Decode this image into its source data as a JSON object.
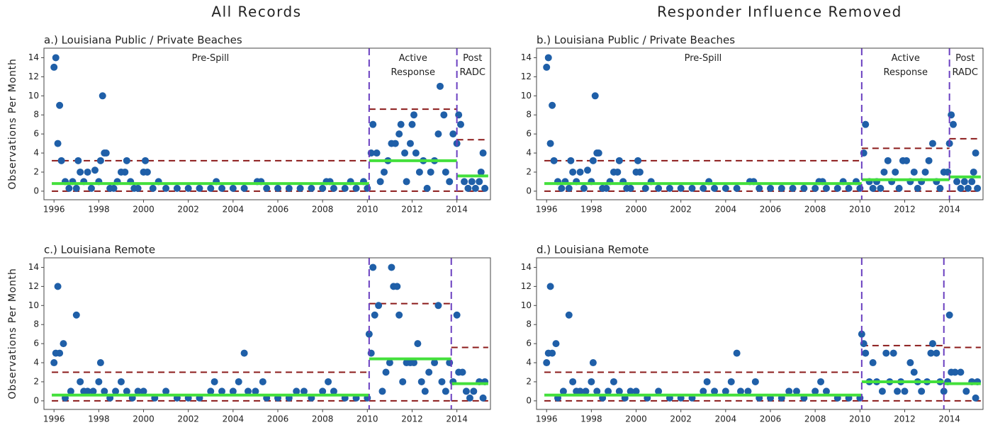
{
  "column_titles": [
    "All Records",
    "Responder Influence Removed"
  ],
  "chart_data": [
    {
      "type": "scatter",
      "title": "a.) Louisiana Public / Private Beaches",
      "y_label": "Observations Per Month",
      "color": "#1f5fa8",
      "xlim": [
        1995.55,
        2015.5
      ],
      "xticks": [
        1996,
        1998,
        2000,
        2002,
        2004,
        2006,
        2008,
        2010,
        2012,
        2014
      ],
      "ylim": [
        -0.9,
        15
      ],
      "yticks": [
        0,
        2,
        4,
        6,
        8,
        10,
        12,
        14
      ],
      "x": [
        1996.0,
        1996.08,
        1996.17,
        1996.25,
        1996.33,
        1996.5,
        1996.67,
        1996.83,
        1997.0,
        1997.08,
        1997.17,
        1997.33,
        1997.5,
        1997.67,
        1997.83,
        1998.0,
        1998.08,
        1998.17,
        1998.25,
        1998.33,
        1998.5,
        1998.67,
        1998.83,
        1999.0,
        1999.17,
        1999.25,
        1999.42,
        1999.58,
        1999.75,
        2000.0,
        2000.08,
        2000.17,
        2000.42,
        2000.67,
        2001.0,
        2001.5,
        2002.0,
        2002.5,
        2003.0,
        2003.25,
        2003.5,
        2004.0,
        2004.5,
        2005.08,
        2005.25,
        2005.5,
        2006.0,
        2006.5,
        2007.0,
        2007.5,
        2008.0,
        2008.17,
        2008.33,
        2008.5,
        2009.0,
        2009.25,
        2009.5,
        2009.83,
        2010.0,
        2010.17,
        2010.25,
        2010.42,
        2010.58,
        2010.75,
        2010.92,
        2011.08,
        2011.25,
        2011.42,
        2011.5,
        2011.67,
        2011.75,
        2011.92,
        2012.0,
        2012.08,
        2012.17,
        2012.33,
        2012.5,
        2012.67,
        2012.83,
        2013.0,
        2013.17,
        2013.25,
        2013.42,
        2013.5,
        2013.67,
        2013.83,
        2014.0,
        2014.08,
        2014.17,
        2014.33,
        2014.5,
        2014.67,
        2014.83,
        2015.0,
        2015.08,
        2015.17,
        2015.25
      ],
      "values": [
        13,
        14,
        5,
        9,
        3.2,
        1,
        0.3,
        1,
        0.3,
        3.2,
        2,
        1,
        2,
        0.3,
        2.2,
        1,
        3.2,
        10,
        4,
        4,
        0.3,
        0.3,
        1,
        2,
        2,
        3.2,
        1,
        0.3,
        0.3,
        2,
        3.2,
        2,
        0.3,
        1,
        0.3,
        0.3,
        0.3,
        0.3,
        0.3,
        1,
        0.3,
        0.3,
        0.3,
        1,
        1,
        0.3,
        0.3,
        0.3,
        0.3,
        0.3,
        0.3,
        1,
        1,
        0.3,
        0.3,
        1,
        0.3,
        1,
        0.3,
        4,
        7,
        4,
        1,
        2,
        3.2,
        5,
        5,
        6,
        7,
        4,
        1,
        5,
        7,
        8,
        4,
        2,
        3.2,
        0.3,
        2,
        3.2,
        6,
        11,
        8,
        2,
        1,
        6,
        5,
        8,
        7,
        1,
        0.3,
        1,
        0.3,
        1,
        2,
        4,
        0.3
      ],
      "phases": [
        {
          "label": "Pre-Spill",
          "start": 1995.9,
          "end": 2010.08,
          "mean": 0.8,
          "ucl": 3.2,
          "lcl": 0
        },
        {
          "label": "Active Response",
          "start": 2010.08,
          "end": 2014.0,
          "mean": 3.2,
          "ucl": 8.6,
          "lcl": 0
        },
        {
          "label": "Post RADC",
          "start": 2014.0,
          "end": 2015.4,
          "mean": 1.6,
          "ucl": 5.4,
          "lcl": 0
        }
      ]
    },
    {
      "type": "scatter",
      "title": "b.) Louisiana Public / Private Beaches",
      "color": "#1f5fa8",
      "xlim": [
        1995.55,
        2015.5
      ],
      "xticks": [
        1996,
        1998,
        2000,
        2002,
        2004,
        2006,
        2008,
        2010,
        2012,
        2014
      ],
      "ylim": [
        -0.9,
        15
      ],
      "yticks": [
        0,
        2,
        4,
        6,
        8,
        10,
        12,
        14
      ],
      "x": [
        1996.0,
        1996.08,
        1996.17,
        1996.25,
        1996.33,
        1996.5,
        1996.67,
        1996.83,
        1997.0,
        1997.08,
        1997.17,
        1997.33,
        1997.5,
        1997.67,
        1997.83,
        1998.0,
        1998.08,
        1998.17,
        1998.25,
        1998.33,
        1998.5,
        1998.67,
        1998.83,
        1999.0,
        1999.17,
        1999.25,
        1999.42,
        1999.58,
        1999.75,
        2000.0,
        2000.08,
        2000.17,
        2000.42,
        2000.67,
        2001.0,
        2001.5,
        2002.0,
        2002.5,
        2003.0,
        2003.25,
        2003.5,
        2004.0,
        2004.5,
        2005.08,
        2005.25,
        2005.5,
        2006.0,
        2006.5,
        2007.0,
        2007.5,
        2008.0,
        2008.17,
        2008.33,
        2008.5,
        2009.0,
        2009.25,
        2009.5,
        2009.83,
        2010.0,
        2010.17,
        2010.25,
        2010.42,
        2010.58,
        2010.75,
        2010.92,
        2011.08,
        2011.25,
        2011.42,
        2011.58,
        2011.75,
        2011.92,
        2012.08,
        2012.25,
        2012.42,
        2012.58,
        2012.75,
        2012.92,
        2013.08,
        2013.25,
        2013.42,
        2013.58,
        2013.75,
        2013.92,
        2014.0,
        2014.08,
        2014.17,
        2014.33,
        2014.5,
        2014.67,
        2014.83,
        2015.0,
        2015.08,
        2015.17,
        2015.25
      ],
      "values": [
        13,
        14,
        5,
        9,
        3.2,
        1,
        0.3,
        1,
        0.3,
        3.2,
        2,
        1,
        2,
        0.3,
        2.2,
        1,
        3.2,
        10,
        4,
        4,
        0.3,
        0.3,
        1,
        2,
        2,
        3.2,
        1,
        0.3,
        0.3,
        2,
        3.2,
        2,
        0.3,
        1,
        0.3,
        0.3,
        0.3,
        0.3,
        0.3,
        1,
        0.3,
        0.3,
        0.3,
        1,
        1,
        0.3,
        0.3,
        0.3,
        0.3,
        0.3,
        0.3,
        1,
        1,
        0.3,
        0.3,
        1,
        0.3,
        1,
        0.3,
        4,
        7,
        1,
        0.3,
        1,
        0.3,
        2,
        3.2,
        1,
        2,
        0.3,
        3.2,
        3.2,
        1,
        2,
        0.3,
        1,
        2,
        3.2,
        5,
        1,
        0.3,
        2,
        2,
        5,
        8,
        7,
        1,
        0.3,
        1,
        0.3,
        1,
        2,
        4,
        0.3
      ],
      "phases": [
        {
          "label": "Pre-Spill",
          "start": 1995.9,
          "end": 2010.08,
          "mean": 0.8,
          "ucl": 3.2,
          "lcl": 0
        },
        {
          "label": "Active Response",
          "start": 2010.08,
          "end": 2014.0,
          "mean": 1.2,
          "ucl": 4.5,
          "lcl": 0
        },
        {
          "label": "Post RADC",
          "start": 2014.0,
          "end": 2015.4,
          "mean": 1.5,
          "ucl": 5.5,
          "lcl": 0
        }
      ]
    },
    {
      "type": "scatter",
      "title": "c.) Louisiana Remote",
      "y_label": "Observations Per Month",
      "color": "#1f5fa8",
      "xlim": [
        1995.55,
        2015.5
      ],
      "xticks": [
        1996,
        1998,
        2000,
        2002,
        2004,
        2006,
        2008,
        2010,
        2012,
        2014
      ],
      "ylim": [
        -0.9,
        15
      ],
      "yticks": [
        0,
        2,
        4,
        6,
        8,
        10,
        12,
        14
      ],
      "x": [
        1996.0,
        1996.08,
        1996.17,
        1996.25,
        1996.42,
        1996.5,
        1996.75,
        1997.0,
        1997.17,
        1997.33,
        1997.5,
        1997.75,
        1998.0,
        1998.08,
        1998.25,
        1998.5,
        1998.75,
        1999.0,
        1999.25,
        1999.5,
        1999.75,
        2000.0,
        2000.5,
        2001.0,
        2001.5,
        2002.0,
        2002.5,
        2003.0,
        2003.17,
        2003.5,
        2004.0,
        2004.25,
        2004.5,
        2004.67,
        2005.0,
        2005.33,
        2005.5,
        2006.0,
        2006.5,
        2006.83,
        2007.17,
        2007.5,
        2008.0,
        2008.25,
        2008.5,
        2009.0,
        2009.5,
        2010.0,
        2010.08,
        2010.17,
        2010.25,
        2010.33,
        2010.5,
        2010.67,
        2010.83,
        2011.0,
        2011.08,
        2011.17,
        2011.33,
        2011.42,
        2011.58,
        2011.75,
        2011.92,
        2012.08,
        2012.25,
        2012.42,
        2012.58,
        2012.75,
        2013.0,
        2013.17,
        2013.33,
        2013.5,
        2013.67,
        2013.83,
        2014.0,
        2014.08,
        2014.25,
        2014.42,
        2014.58,
        2014.75,
        2015.0,
        2015.17,
        2015.25
      ],
      "values": [
        4,
        5,
        12,
        5,
        6,
        0.3,
        1,
        9,
        2,
        1,
        1,
        1,
        2,
        4,
        1,
        0.3,
        1,
        2,
        1,
        0.3,
        1,
        1,
        0.3,
        1,
        0.3,
        0.3,
        0.3,
        1,
        2,
        1,
        1,
        2,
        5,
        1,
        1,
        2,
        0.3,
        0.3,
        0.3,
        1,
        1,
        0.3,
        1,
        2,
        1,
        0.3,
        0.3,
        0.3,
        7,
        5,
        14,
        9,
        10,
        1,
        3,
        4,
        14,
        12,
        12,
        9,
        2,
        4,
        4,
        4,
        6,
        2,
        1,
        3,
        4,
        10,
        2,
        1,
        4,
        2,
        9,
        3,
        3,
        1,
        0.3,
        1,
        2,
        0.3,
        2
      ],
      "phases": [
        {
          "start": 1995.9,
          "end": 2010.08,
          "mean": 0.6,
          "ucl": 3.0,
          "lcl": 0
        },
        {
          "start": 2010.08,
          "end": 2013.75,
          "mean": 4.4,
          "ucl": 10.2,
          "lcl": 0
        },
        {
          "start": 2013.75,
          "end": 2015.4,
          "mean": 1.8,
          "ucl": 5.6,
          "lcl": 0
        }
      ]
    },
    {
      "type": "scatter",
      "title": "d.) Louisiana Remote",
      "color": "#1f5fa8",
      "xlim": [
        1995.55,
        2015.5
      ],
      "xticks": [
        1996,
        1998,
        2000,
        2002,
        2004,
        2006,
        2008,
        2010,
        2012,
        2014
      ],
      "ylim": [
        -0.9,
        15
      ],
      "yticks": [
        0,
        2,
        4,
        6,
        8,
        10,
        12,
        14
      ],
      "x": [
        1996.0,
        1996.08,
        1996.17,
        1996.25,
        1996.42,
        1996.5,
        1996.75,
        1997.0,
        1997.17,
        1997.33,
        1997.5,
        1997.75,
        1998.0,
        1998.08,
        1998.25,
        1998.5,
        1998.75,
        1999.0,
        1999.25,
        1999.5,
        1999.75,
        2000.0,
        2000.5,
        2001.0,
        2001.5,
        2002.0,
        2002.5,
        2003.0,
        2003.17,
        2003.5,
        2004.0,
        2004.25,
        2004.5,
        2004.67,
        2005.0,
        2005.33,
        2005.5,
        2006.0,
        2006.5,
        2006.83,
        2007.17,
        2007.5,
        2008.0,
        2008.25,
        2008.5,
        2009.0,
        2009.5,
        2010.0,
        2010.08,
        2010.17,
        2010.25,
        2010.42,
        2010.58,
        2010.75,
        2011.0,
        2011.17,
        2011.33,
        2011.5,
        2011.67,
        2011.83,
        2012.0,
        2012.25,
        2012.42,
        2012.58,
        2012.75,
        2013.0,
        2013.17,
        2013.25,
        2013.42,
        2013.58,
        2013.75,
        2013.92,
        2014.0,
        2014.08,
        2014.25,
        2014.5,
        2014.75,
        2015.0,
        2015.17,
        2015.25
      ],
      "values": [
        4,
        5,
        12,
        5,
        6,
        0.3,
        1,
        9,
        2,
        1,
        1,
        1,
        2,
        4,
        1,
        0.3,
        1,
        2,
        1,
        0.3,
        1,
        1,
        0.3,
        1,
        0.3,
        0.3,
        0.3,
        1,
        2,
        1,
        1,
        2,
        5,
        1,
        1,
        2,
        0.3,
        0.3,
        0.3,
        1,
        1,
        0.3,
        1,
        2,
        1,
        0.3,
        0.3,
        0.3,
        7,
        6,
        5,
        2,
        4,
        2,
        1,
        5,
        2,
        5,
        1,
        2,
        1,
        4,
        3,
        2,
        1,
        2,
        5,
        6,
        5,
        2,
        1,
        2,
        9,
        3,
        3,
        3,
        1,
        2,
        0.3,
        2
      ],
      "phases": [
        {
          "start": 1995.9,
          "end": 2010.08,
          "mean": 0.6,
          "ucl": 3.0,
          "lcl": 0
        },
        {
          "start": 2010.08,
          "end": 2013.75,
          "mean": 2.0,
          "ucl": 5.8,
          "lcl": 0
        },
        {
          "start": 2013.75,
          "end": 2015.4,
          "mean": 1.8,
          "ucl": 5.6,
          "lcl": 0
        }
      ]
    }
  ]
}
